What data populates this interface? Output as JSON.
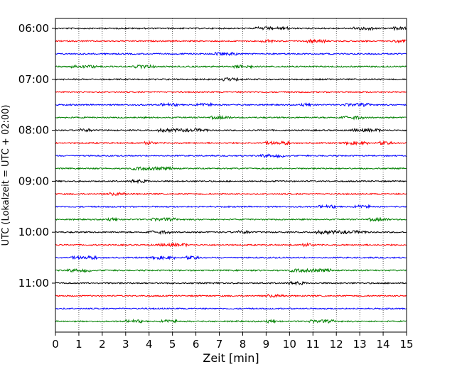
{
  "chart_data": {
    "type": "line",
    "chart_kind": "helicorder",
    "xlabel": "Zeit  [min]",
    "ylabel": "UTC (Lokalzeit = UTC + 02:00)",
    "xlim": [
      0,
      15
    ],
    "x_ticks": [
      "0",
      "1",
      "2",
      "3",
      "4",
      "5",
      "6",
      "7",
      "8",
      "9",
      "10",
      "11",
      "12",
      "13",
      "14",
      "15"
    ],
    "y_tick_labels": [
      "06:00",
      "07:00",
      "08:00",
      "09:00",
      "10:00",
      "11:00"
    ],
    "traces_per_hour": 4,
    "trace_count": 24,
    "trace_start_times": [
      "06:00",
      "06:15",
      "06:30",
      "06:45",
      "07:00",
      "07:15",
      "07:30",
      "07:45",
      "08:00",
      "08:15",
      "08:30",
      "08:45",
      "09:00",
      "09:15",
      "09:30",
      "09:45",
      "10:00",
      "10:15",
      "10:30",
      "10:45",
      "11:00",
      "11:15",
      "11:30",
      "11:45"
    ],
    "trace_colors": [
      "#000000",
      "#ff0000",
      "#0000ff",
      "#008000"
    ],
    "x_grid": "dotted vertical at each minute",
    "legend": "none"
  }
}
